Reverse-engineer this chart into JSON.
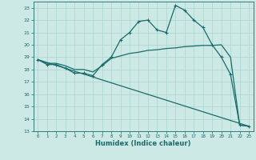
{
  "xlabel": "Humidex (Indice chaleur)",
  "bg_color": "#cce9e5",
  "grid_color": "#aad4ce",
  "line_color": "#1a6b6b",
  "xlim": [
    -0.5,
    23.5
  ],
  "ylim": [
    13,
    23.5
  ],
  "yticks": [
    13,
    14,
    15,
    16,
    17,
    18,
    19,
    20,
    21,
    22,
    23
  ],
  "xticks": [
    0,
    1,
    2,
    3,
    4,
    5,
    6,
    7,
    8,
    9,
    10,
    11,
    12,
    13,
    14,
    15,
    16,
    17,
    18,
    19,
    20,
    21,
    22,
    23
  ],
  "curve1_x": [
    0,
    1,
    2,
    3,
    4,
    5,
    6,
    7,
    8,
    9,
    10,
    11,
    12,
    13,
    14,
    15,
    16,
    17,
    18,
    19,
    20,
    21,
    22,
    23
  ],
  "curve1_y": [
    18.8,
    18.4,
    18.4,
    18.1,
    17.7,
    17.7,
    17.5,
    18.4,
    19.0,
    20.4,
    21.0,
    21.9,
    22.0,
    21.2,
    21.0,
    23.2,
    22.8,
    22.0,
    21.4,
    20.0,
    19.0,
    17.6,
    13.5,
    13.4
  ],
  "curve2_x": [
    0,
    1,
    2,
    3,
    4,
    5,
    6,
    7,
    8,
    9,
    10,
    11,
    12,
    13,
    14,
    15,
    16,
    17,
    18,
    19,
    20,
    21,
    22,
    23
  ],
  "curve2_y": [
    18.8,
    18.5,
    18.5,
    18.3,
    18.0,
    18.0,
    17.8,
    18.3,
    18.9,
    19.1,
    19.3,
    19.4,
    19.55,
    19.6,
    19.7,
    19.75,
    19.85,
    19.9,
    19.95,
    19.95,
    20.0,
    19.0,
    13.5,
    13.4
  ],
  "curve3_x": [
    0,
    23
  ],
  "curve3_y": [
    18.8,
    13.4
  ]
}
